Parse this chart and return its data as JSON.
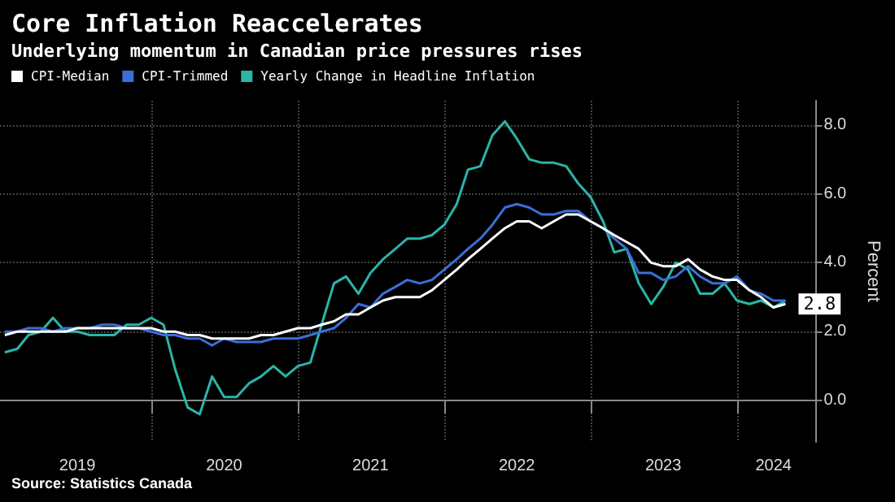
{
  "chart_data": {
    "type": "line",
    "title": "Core Inflation Reaccelerates",
    "subtitle": "Underlying momentum in Canadian price pressures rises",
    "ylabel": "Percent",
    "x": [
      "2019-01",
      "2019-02",
      "2019-03",
      "2019-04",
      "2019-05",
      "2019-06",
      "2019-07",
      "2019-08",
      "2019-09",
      "2019-10",
      "2019-11",
      "2019-12",
      "2020-01",
      "2020-02",
      "2020-03",
      "2020-04",
      "2020-05",
      "2020-06",
      "2020-07",
      "2020-08",
      "2020-09",
      "2020-10",
      "2020-11",
      "2020-12",
      "2021-01",
      "2021-02",
      "2021-03",
      "2021-04",
      "2021-05",
      "2021-06",
      "2021-07",
      "2021-08",
      "2021-09",
      "2021-10",
      "2021-11",
      "2021-12",
      "2022-01",
      "2022-02",
      "2022-03",
      "2022-04",
      "2022-05",
      "2022-06",
      "2022-07",
      "2022-08",
      "2022-09",
      "2022-10",
      "2022-11",
      "2022-12",
      "2023-01",
      "2023-02",
      "2023-03",
      "2023-04",
      "2023-05",
      "2023-06",
      "2023-07",
      "2023-08",
      "2023-09",
      "2023-10",
      "2023-11",
      "2023-12",
      "2024-01",
      "2024-02",
      "2024-03",
      "2024-04",
      "2024-05"
    ],
    "series": [
      {
        "name": "Yearly Change in Headline Inflation",
        "color": "#2bb5a9",
        "values": [
          1.4,
          1.5,
          1.9,
          2.0,
          2.4,
          2.0,
          2.0,
          1.9,
          1.9,
          1.9,
          2.2,
          2.2,
          2.4,
          2.2,
          0.9,
          -0.2,
          -0.4,
          0.7,
          0.1,
          0.1,
          0.5,
          0.7,
          1.0,
          0.7,
          1.0,
          1.1,
          2.2,
          3.4,
          3.6,
          3.1,
          3.7,
          4.1,
          4.4,
          4.7,
          4.7,
          4.8,
          5.1,
          5.7,
          6.7,
          6.8,
          7.7,
          8.1,
          7.6,
          7.0,
          6.9,
          6.9,
          6.8,
          6.3,
          5.9,
          5.2,
          4.3,
          4.4,
          3.4,
          2.8,
          3.3,
          4.0,
          3.8,
          3.1,
          3.1,
          3.4,
          2.9,
          2.8,
          2.9,
          2.7,
          2.9
        ]
      },
      {
        "name": "CPI-Trimmed",
        "color": "#3a6fd8",
        "values": [
          2.0,
          2.0,
          2.1,
          2.1,
          2.0,
          2.1,
          2.1,
          2.1,
          2.2,
          2.2,
          2.1,
          2.1,
          2.0,
          1.9,
          1.9,
          1.8,
          1.8,
          1.6,
          1.8,
          1.7,
          1.7,
          1.7,
          1.8,
          1.8,
          1.8,
          1.9,
          2.0,
          2.1,
          2.4,
          2.8,
          2.7,
          3.1,
          3.3,
          3.5,
          3.4,
          3.5,
          3.8,
          4.1,
          4.4,
          4.7,
          5.1,
          5.6,
          5.7,
          5.6,
          5.4,
          5.4,
          5.5,
          5.5,
          5.2,
          5.0,
          4.7,
          4.4,
          3.7,
          3.7,
          3.5,
          3.6,
          3.9,
          3.6,
          3.4,
          3.4,
          3.6,
          3.2,
          3.1,
          2.9,
          2.9
        ]
      },
      {
        "name": "CPI-Median",
        "color": "#ffffff",
        "values": [
          1.9,
          2.0,
          2.0,
          2.0,
          2.0,
          2.0,
          2.1,
          2.1,
          2.1,
          2.1,
          2.1,
          2.1,
          2.1,
          2.0,
          2.0,
          1.9,
          1.9,
          1.8,
          1.8,
          1.8,
          1.8,
          1.9,
          1.9,
          2.0,
          2.1,
          2.1,
          2.2,
          2.3,
          2.5,
          2.5,
          2.7,
          2.9,
          3.0,
          3.0,
          3.0,
          3.2,
          3.5,
          3.8,
          4.1,
          4.4,
          4.7,
          5.0,
          5.2,
          5.2,
          5.0,
          5.2,
          5.4,
          5.4,
          5.2,
          5.0,
          4.8,
          4.6,
          4.4,
          4.0,
          3.9,
          3.9,
          4.1,
          3.8,
          3.6,
          3.5,
          3.5,
          3.2,
          3.0,
          2.7,
          2.8
        ],
        "value_labels": [
          null,
          null,
          null,
          null,
          null,
          null,
          null,
          null,
          null,
          null,
          null,
          null,
          null,
          null,
          null,
          null,
          null,
          null,
          null,
          null,
          null,
          null,
          null,
          null,
          null,
          null,
          null,
          null,
          null,
          null,
          null,
          null,
          null,
          null,
          null,
          null,
          null,
          null,
          null,
          null,
          null,
          null,
          null,
          null,
          null,
          null,
          null,
          null,
          null,
          null,
          null,
          null,
          null,
          null,
          null,
          null,
          null,
          null,
          null,
          null,
          null,
          null,
          null,
          null,
          "2.8"
        ]
      }
    ],
    "xlim": [
      "2018-12-20",
      "2024-07-15"
    ],
    "xticks": [
      {
        "value": "2019-07-01",
        "label": "2019"
      },
      {
        "value": "2020-01-01",
        "label": null
      },
      {
        "value": "2020-07-01",
        "label": "2020"
      },
      {
        "value": "2021-01-01",
        "label": null
      },
      {
        "value": "2021-07-01",
        "label": "2021"
      },
      {
        "value": "2022-01-01",
        "label": null
      },
      {
        "value": "2022-07-01",
        "label": "2022"
      },
      {
        "value": "2023-01-01",
        "label": null
      },
      {
        "value": "2023-07-01",
        "label": "2023"
      },
      {
        "value": "2024-01-01",
        "label": null
      },
      {
        "value": "2024-04-01",
        "label": "2024"
      }
    ],
    "ylim": [
      -1.2,
      8.7
    ],
    "yticks": [
      {
        "value": 0,
        "label": "0.0"
      },
      {
        "value": 2,
        "label": "2.0"
      },
      {
        "value": 4,
        "label": "4.0"
      },
      {
        "value": 6,
        "label": "6.0"
      },
      {
        "value": 8,
        "label": "8.0"
      }
    ],
    "grid": true,
    "legend": "top left",
    "marker": "none",
    "line_style": "solid",
    "annotations": [
      "Source: Statistics Canada"
    ]
  }
}
